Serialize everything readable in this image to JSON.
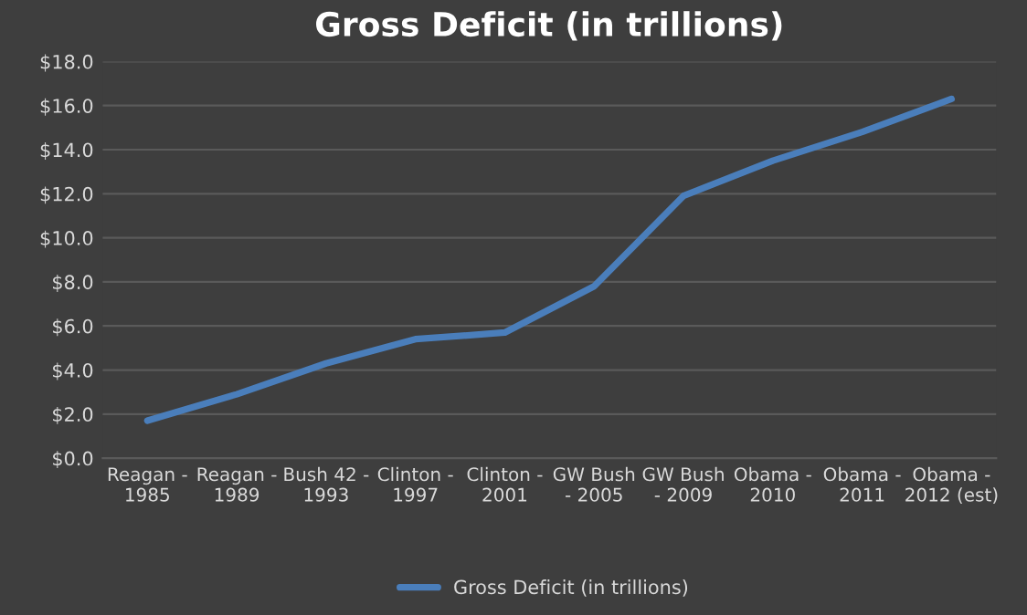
{
  "chart_data": {
    "type": "line",
    "title": "Gross Deficit (in trillions)",
    "categories": [
      "Reagan -\n1985",
      "Reagan -\n1989",
      "Bush 42 -\n1993",
      "Clinton -\n1997",
      "Clinton -\n2001",
      "GW Bush\n- 2005",
      "GW Bush\n- 2009",
      "Obama -\n2010",
      "Obama -\n2011",
      "Obama -\n2012 (est)"
    ],
    "series": [
      {
        "name": "Gross Deficit (in trillions)",
        "color": "#4a7ebb",
        "values": [
          1.7,
          2.9,
          4.3,
          5.4,
          5.7,
          7.8,
          11.9,
          13.5,
          14.8,
          16.3
        ]
      }
    ],
    "ylim": [
      0,
      18
    ],
    "yticks": [
      {
        "value": 0,
        "label": "$0.0"
      },
      {
        "value": 2,
        "label": "$2.0"
      },
      {
        "value": 4,
        "label": "$4.0"
      },
      {
        "value": 6,
        "label": "$6.0"
      },
      {
        "value": 8,
        "label": "$8.0"
      },
      {
        "value": 10,
        "label": "$10.0"
      },
      {
        "value": 12,
        "label": "$12.0"
      },
      {
        "value": 14,
        "label": "$14.0"
      },
      {
        "value": 16,
        "label": "$16.0"
      },
      {
        "value": 18,
        "label": "$18.0"
      }
    ],
    "grid": "y",
    "legend": "bottom",
    "marker": "none",
    "line_style": "solid"
  }
}
